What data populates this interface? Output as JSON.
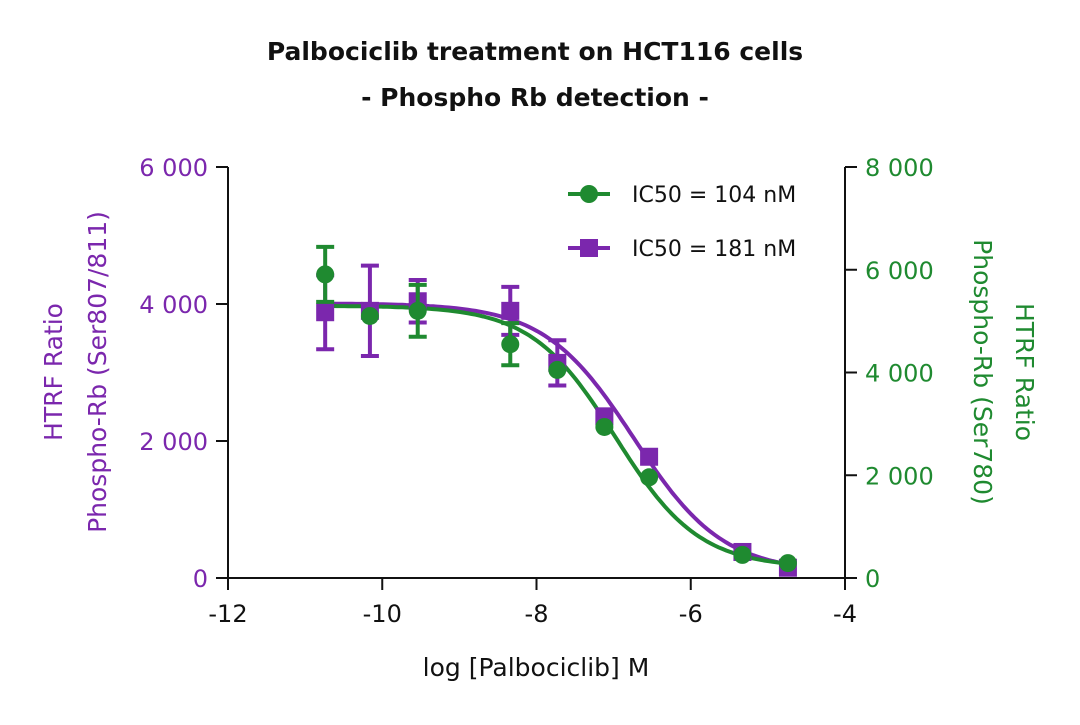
{
  "chart_data": {
    "type": "scatter",
    "title": [
      "Palbociclib treatment on HCT116 cells",
      "- Phospho Rb detection -"
    ],
    "xlabel": "log [Palbociclib] M",
    "ylabel_left": [
      "HTRF Ratio",
      "Phospho-Rb (Ser807/811)"
    ],
    "ylabel_right": [
      "HTRF Ratio",
      "Phospho-Rb (Ser780)"
    ],
    "xlim": [
      -12,
      -4
    ],
    "ylim_left": [
      0,
      6000
    ],
    "ylim_right": [
      0,
      8000
    ],
    "x_ticks": [
      "-12",
      "-10",
      "-8",
      "-6",
      "-4"
    ],
    "x_tick_values": [
      -12,
      -10,
      -8,
      -6,
      -4
    ],
    "y_ticks_left": [
      "0",
      "2 000",
      "4 000",
      "6 000"
    ],
    "y_tick_values_left": [
      0,
      2000,
      4000,
      6000
    ],
    "y_ticks_right": [
      "0",
      "2 000",
      "4 000",
      "6 000",
      "8 000"
    ],
    "y_tick_values_right": [
      0,
      2000,
      4000,
      6000,
      8000
    ],
    "grid": false,
    "legend_position": "top-right",
    "x": [
      -10.74,
      -10.16,
      -9.54,
      -8.34,
      -7.73,
      -7.12,
      -6.54,
      -5.33,
      -4.74
    ],
    "series": [
      {
        "name": "IC50 = 104 nM",
        "axis": "right",
        "marker": "circle",
        "color": "#1f8a30",
        "values": [
          5910,
          5100,
          5200,
          4550,
          4050,
          2940,
          1960,
          450,
          290
        ],
        "errors": [
          535,
          0,
          505,
          410,
          0,
          0,
          0,
          0,
          0
        ],
        "fit": {
          "top": 5300,
          "bottom": 200,
          "log_ic50": -6.98,
          "hill": 0.8
        }
      },
      {
        "name": "IC50 = 181 nM",
        "axis": "left",
        "marker": "square",
        "color": "#7b27ad",
        "values": [
          3880,
          3900,
          4040,
          3900,
          3140,
          2360,
          1770,
          380,
          150
        ],
        "errors": [
          540,
          660,
          310,
          350,
          330,
          0,
          0,
          0,
          0
        ],
        "fit": {
          "top": 4010,
          "bottom": 80,
          "log_ic50": -6.74,
          "hill": 0.75
        }
      }
    ]
  }
}
